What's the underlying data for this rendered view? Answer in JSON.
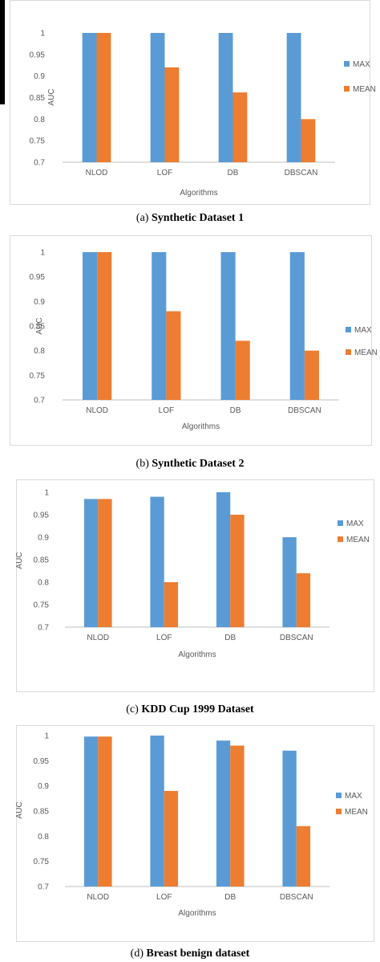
{
  "colors": {
    "max": "#5B9BD5",
    "mean": "#ED7D31",
    "grid": "#d9d9d9",
    "axis": "#bfbfbf",
    "text": "#595959"
  },
  "chart_data": [
    {
      "type": "bar",
      "caption_label": "(a)",
      "caption_title": "Synthetic Dataset 1",
      "categories": [
        "NLOD",
        "LOF",
        "DB",
        "DBSCAN"
      ],
      "series": [
        {
          "name": "MAX",
          "values": [
            1,
            1,
            1,
            1
          ]
        },
        {
          "name": "MEAN",
          "values": [
            1,
            0.92,
            0.862,
            0.8
          ]
        }
      ],
      "xlabel": "Algorithms",
      "ylabel": "AUC",
      "ylim": [
        0.7,
        1
      ],
      "yticks": [
        "0.7",
        "0.75",
        "0.8",
        "0.85",
        "0.9",
        "0.95",
        "1"
      ],
      "grid": false,
      "legend": "right"
    },
    {
      "type": "bar",
      "caption_label": "(b)",
      "caption_title": "Synthetic Dataset 2",
      "categories": [
        "NLOD",
        "LOF",
        "DB",
        "DBSCAN"
      ],
      "series": [
        {
          "name": "MAX",
          "values": [
            1,
            1,
            1,
            1
          ]
        },
        {
          "name": "MEAN",
          "values": [
            1,
            0.88,
            0.82,
            0.8
          ]
        }
      ],
      "xlabel": "Algorithms",
      "ylabel": "AUC",
      "ylim": [
        0.7,
        1
      ],
      "yticks": [
        "0.7",
        "0.75",
        "0.8",
        "0.85",
        "0.9",
        "0.95",
        "1"
      ],
      "grid": false,
      "legend": "right"
    },
    {
      "type": "bar",
      "caption_label": "(c)",
      "caption_title": "KDD Cup 1999 Dataset",
      "categories": [
        "NLOD",
        "LOF",
        "DB",
        "DBSCAN"
      ],
      "series": [
        {
          "name": "MAX",
          "values": [
            0.985,
            0.99,
            1,
            0.9
          ]
        },
        {
          "name": "MEAN",
          "values": [
            0.985,
            0.8,
            0.95,
            0.82
          ]
        }
      ],
      "xlabel": "Algorithms",
      "ylabel": "AUC",
      "ylim": [
        0.7,
        1
      ],
      "yticks": [
        "0.7",
        "0.75",
        "0.8",
        "0.85",
        "0.9",
        "0.95",
        "1"
      ],
      "grid": false,
      "legend": "right"
    },
    {
      "type": "bar",
      "caption_label": "(d)",
      "caption_title": "Breast benign dataset",
      "categories": [
        "NLOD",
        "LOF",
        "DB",
        "DBSCAN"
      ],
      "series": [
        {
          "name": "MAX",
          "values": [
            0.998,
            1,
            0.99,
            0.97
          ]
        },
        {
          "name": "MEAN",
          "values": [
            0.998,
            0.89,
            0.98,
            0.82
          ]
        }
      ],
      "xlabel": "Algorithms",
      "ylabel": "AUC",
      "ylim": [
        0.7,
        1
      ],
      "yticks": [
        "0.7",
        "0.75",
        "0.8",
        "0.85",
        "0.9",
        "0.95",
        "1"
      ],
      "grid": false,
      "legend": "right"
    }
  ]
}
